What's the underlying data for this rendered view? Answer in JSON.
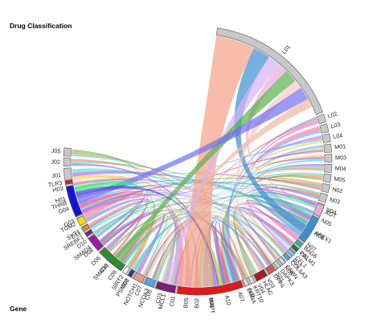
{
  "titles": {
    "top": "Drug Classification",
    "bottom": "Gene"
  },
  "drug_sectors": [
    {
      "label": "L01",
      "weight": 26
    },
    {
      "label": "L02",
      "weight": 1.5
    },
    {
      "label": "L03",
      "weight": 1.5
    },
    {
      "label": "L04",
      "weight": 1.5
    },
    {
      "label": "M01",
      "weight": 1.5
    },
    {
      "label": "M03",
      "weight": 1.5
    },
    {
      "label": "M04",
      "weight": 1.5
    },
    {
      "label": "M05",
      "weight": 1.5
    },
    {
      "label": "N02",
      "weight": 1.5
    },
    {
      "label": "N03",
      "weight": 1.5
    },
    {
      "label": "N04",
      "weight": 1.5
    },
    {
      "label": "N05",
      "weight": 2
    },
    {
      "label": "N06",
      "weight": 2.5
    },
    {
      "label": "N07",
      "weight": 1.5
    },
    {
      "label": "P01",
      "weight": 1.5
    },
    {
      "label": "P02",
      "weight": 1.5
    },
    {
      "label": "R05",
      "weight": 1.5
    },
    {
      "label": "S01",
      "weight": 1.5
    },
    {
      "label": "V03",
      "weight": 1.5
    },
    {
      "label": "V04",
      "weight": 1.5
    },
    {
      "label": "A02",
      "weight": 1.5
    },
    {
      "label": "A07",
      "weight": 1.5
    },
    {
      "label": "A10",
      "weight": 2.5
    },
    {
      "label": "B01",
      "weight": 2.5
    },
    {
      "label": "B02",
      "weight": 1.5
    },
    {
      "label": "B05",
      "weight": 1.5
    },
    {
      "label": "C01",
      "weight": 2.5
    },
    {
      "label": "C03",
      "weight": 1.5
    },
    {
      "label": "C05",
      "weight": 1.5
    },
    {
      "label": "C07",
      "weight": 1.5
    },
    {
      "label": "C08",
      "weight": 3
    },
    {
      "label": "C09",
      "weight": 1.5
    },
    {
      "label": "C10",
      "weight": 1.5
    },
    {
      "label": "D06",
      "weight": 1.5
    },
    {
      "label": "D08",
      "weight": 1.5
    },
    {
      "label": "D10",
      "weight": 1.5
    },
    {
      "label": "D11",
      "weight": 1.5
    },
    {
      "label": "G03",
      "weight": 2.5
    },
    {
      "label": "G04",
      "weight": 1.5
    },
    {
      "label": "H01",
      "weight": 1.5
    },
    {
      "label": "H03",
      "weight": 1.5
    },
    {
      "label": "J01",
      "weight": 2.5
    },
    {
      "label": "J02",
      "weight": 1.5
    },
    {
      "label": "J05",
      "weight": 1.5
    }
  ],
  "gene_sectors": [
    {
      "label": "AGT",
      "weight": 3,
      "color": "#e8a9dc"
    },
    {
      "label": "APEX1",
      "weight": 7,
      "color": "#3f8fd0"
    },
    {
      "label": "BAG6",
      "weight": 1,
      "color": "#36b7a8"
    },
    {
      "label": "CALM1",
      "weight": 1,
      "color": "#1e7b3e"
    },
    {
      "label": "CFL1",
      "weight": 1,
      "color": "#7cc5e8"
    },
    {
      "label": "COL6A3",
      "weight": 1,
      "color": "#5aa5d6"
    },
    {
      "label": "CRBN",
      "weight": 1,
      "color": "#d4d4d4"
    },
    {
      "label": "DAPK3",
      "weight": 1,
      "color": "#b0e0b8"
    },
    {
      "label": "DPP4",
      "weight": 2,
      "color": "#ce5a5a"
    },
    {
      "label": "HLAC",
      "weight": 3,
      "color": "#a81c22"
    },
    {
      "label": "KRT10",
      "weight": 1,
      "color": "#e0e0e0"
    },
    {
      "label": "LMNA",
      "weight": 1,
      "color": "#f4d2c4"
    },
    {
      "label": "MAPT",
      "weight": 17,
      "color": "#e0191f"
    },
    {
      "label": "MCL1",
      "weight": 5,
      "color": "#7a1f7a"
    },
    {
      "label": "NCOA3",
      "weight": 2.5,
      "color": "#5aa5d6"
    },
    {
      "label": "NOTCH1",
      "weight": 2.5,
      "color": "#e89a8a"
    },
    {
      "label": "PSME3",
      "weight": 1,
      "color": "#2a3a8a"
    },
    {
      "label": "SIRT2",
      "weight": 1,
      "color": "#fafafa"
    },
    {
      "label": "SMAD3",
      "weight": 7,
      "color": "#2f8a2f"
    },
    {
      "label": "SMAD4",
      "weight": 4,
      "color": "#a01aa0"
    },
    {
      "label": "SREBF1",
      "weight": 1,
      "color": "#6a2a9a"
    },
    {
      "label": "SYT1",
      "weight": 1,
      "color": "#f28a18"
    },
    {
      "label": "TGM2",
      "weight": 2,
      "color": "#f2d918"
    },
    {
      "label": "THRB",
      "weight": 8,
      "color": "#1414d8"
    },
    {
      "label": "TLR3",
      "weight": 1,
      "color": "#c62a1f"
    }
  ],
  "chord_colors": [
    "#2ef26e",
    "#7878f0",
    "#f26a5a",
    "#e84ae8",
    "#3ab0f0",
    "#f2c230",
    "#9a4ae8",
    "#30d8c8",
    "#f27a30",
    "#5ab04a",
    "#e8407a",
    "#4a7ae8"
  ],
  "sector_outline": "#555555",
  "drug_fill": "#c8c8c8",
  "heavy_chords": [
    {
      "drug": "L01",
      "gene": "MAPT",
      "color": "#f4a086",
      "value": 9
    },
    {
      "drug": "L01",
      "gene": "APEX1",
      "color": "#3a8ed0",
      "value": 4
    },
    {
      "drug": "L01",
      "gene": "MCL1",
      "color": "#d7b3f2",
      "value": 3
    },
    {
      "drug": "L01",
      "gene": "AGT",
      "color": "#e8a9dc",
      "value": 2
    },
    {
      "drug": "L01",
      "gene": "SMAD3",
      "color": "#5ab04a",
      "value": 3
    },
    {
      "drug": "L01",
      "gene": "HLAC",
      "color": "#f2c8c8",
      "value": 2
    },
    {
      "drug": "L01",
      "gene": "THRB",
      "color": "#7070f0",
      "value": 3
    },
    {
      "drug": "L01",
      "gene": "NOTCH1",
      "color": "#f2b8a0",
      "value": 2
    },
    {
      "drug": "A10",
      "gene": "THRB",
      "color": "#4a4af0",
      "value": 2
    },
    {
      "drug": "C08",
      "gene": "THRB",
      "color": "#2ef26e",
      "value": 2
    },
    {
      "drug": "C01",
      "gene": "MAPT",
      "color": "#f26a5a",
      "value": 2
    },
    {
      "drug": "G03",
      "gene": "SMAD4",
      "color": "#e84ae8",
      "value": 2
    },
    {
      "drug": "J01",
      "gene": "MAPT",
      "color": "#9a4ae8",
      "value": 1.5
    },
    {
      "drug": "N06",
      "gene": "MAPT",
      "color": "#f2a050",
      "value": 1.5
    },
    {
      "drug": "N05",
      "gene": "APEX1",
      "color": "#3ab0f0",
      "value": 1.5
    },
    {
      "drug": "B01",
      "gene": "DPP4",
      "color": "#9ad87a",
      "value": 1.5
    }
  ]
}
